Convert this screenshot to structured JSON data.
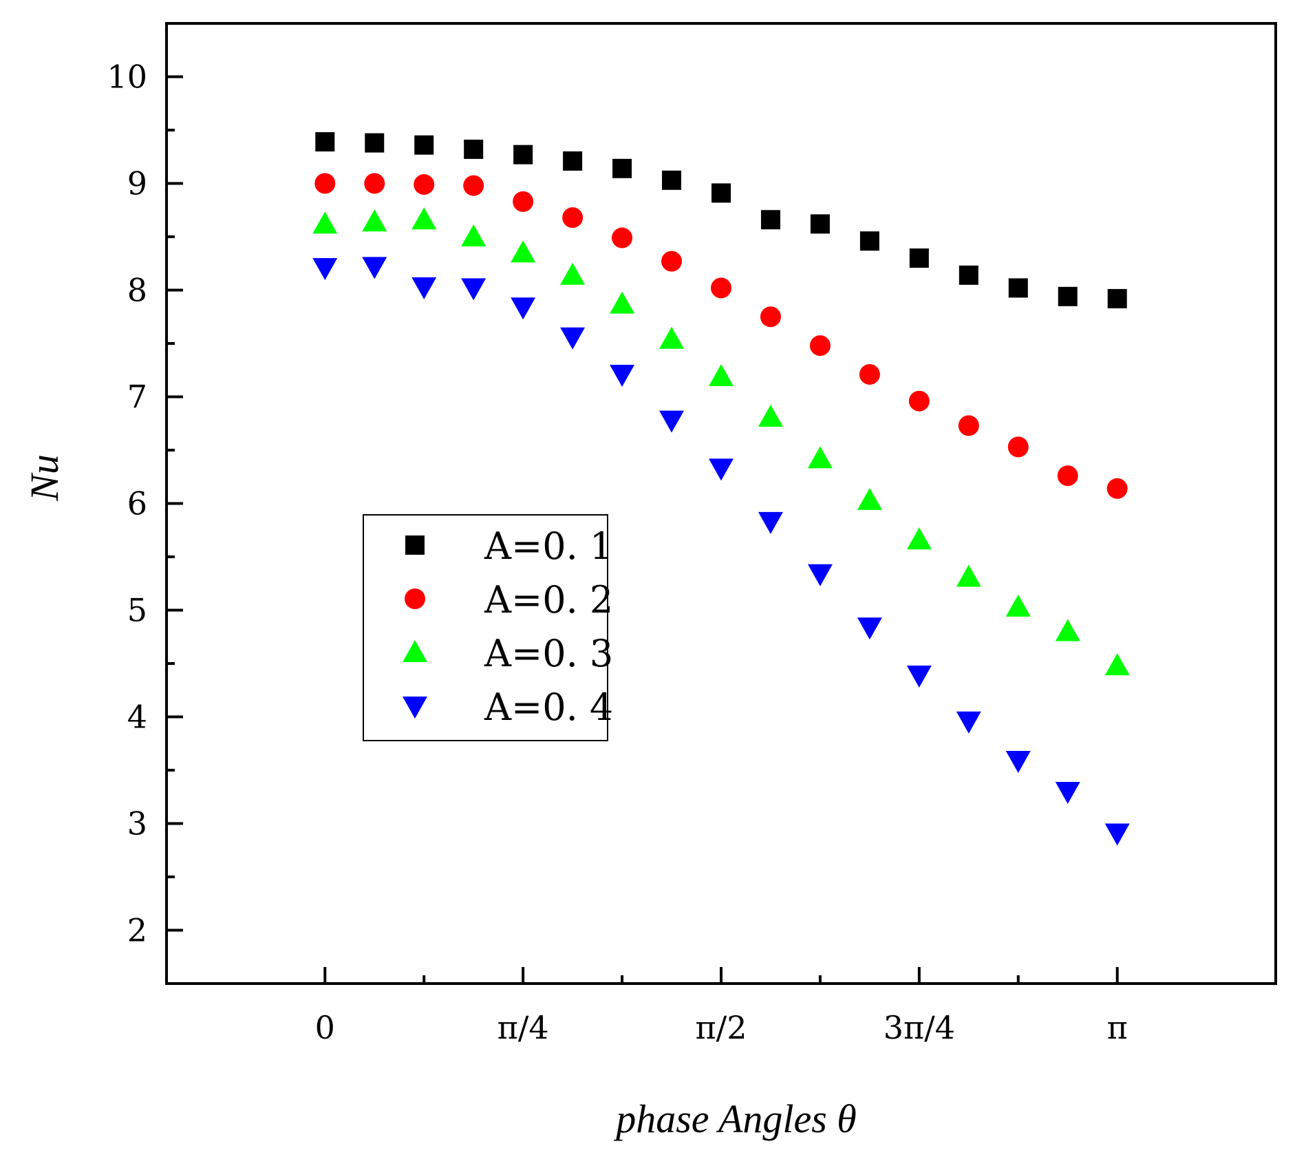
{
  "chart_data": {
    "type": "scatter",
    "title": "",
    "xlabel": "phase Angles θ",
    "ylabel": "Nu",
    "xlim": [
      -0.2,
      1.2
    ],
    "ylim": [
      1.5,
      10.5
    ],
    "x_ticks": [
      {
        "value": 0,
        "label": "0"
      },
      {
        "value": 0.25,
        "label": "π/4"
      },
      {
        "value": 0.5,
        "label": "π/2"
      },
      {
        "value": 0.75,
        "label": "3π/4"
      },
      {
        "value": 1.0,
        "label": "π"
      }
    ],
    "x_minor_ticks": [
      0.125,
      0.375,
      0.625,
      0.875
    ],
    "y_ticks": [
      2,
      3,
      4,
      5,
      6,
      7,
      8,
      9,
      10
    ],
    "x_units_note": "x values are fractions of π",
    "x": [
      0,
      0.0625,
      0.125,
      0.1875,
      0.25,
      0.3125,
      0.375,
      0.4375,
      0.5,
      0.5625,
      0.625,
      0.6875,
      0.75,
      0.8125,
      0.875,
      0.9375,
      1.0
    ],
    "series": [
      {
        "name": "A=0. 1",
        "marker": "square",
        "color": "#000000",
        "values": [
          9.39,
          9.38,
          9.36,
          9.32,
          9.27,
          9.21,
          9.14,
          9.03,
          8.91,
          8.66,
          8.62,
          8.46,
          8.3,
          8.14,
          8.02,
          7.94,
          7.92
        ]
      },
      {
        "name": "A=0. 2",
        "marker": "circle",
        "color": "#ff0000",
        "values": [
          9.0,
          9.0,
          8.99,
          8.98,
          8.83,
          8.68,
          8.49,
          8.27,
          8.02,
          7.75,
          7.48,
          7.21,
          6.96,
          6.73,
          6.53,
          6.26,
          6.14
        ]
      },
      {
        "name": "A=0. 3",
        "marker": "triangle-up",
        "color": "#00ff00",
        "values": [
          8.62,
          8.64,
          8.66,
          8.5,
          8.35,
          8.14,
          7.87,
          7.54,
          7.19,
          6.81,
          6.42,
          6.03,
          5.66,
          5.31,
          5.03,
          4.8,
          4.48
        ]
      },
      {
        "name": "A=0. 4",
        "marker": "triangle-down",
        "color": "#0000ff",
        "values": [
          8.21,
          8.22,
          8.03,
          8.02,
          7.84,
          7.56,
          7.21,
          6.78,
          6.33,
          5.83,
          5.34,
          4.84,
          4.39,
          3.96,
          3.59,
          3.3,
          2.91
        ]
      }
    ],
    "legend_position": "center-left"
  }
}
